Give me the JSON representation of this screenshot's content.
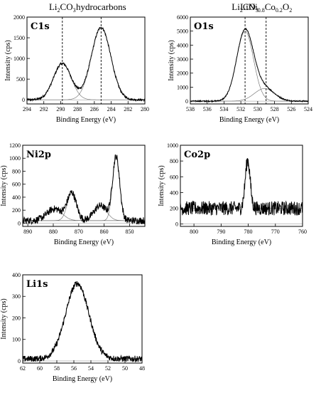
{
  "figure": {
    "panels": [
      {
        "id": "c1s",
        "label": "C1s",
        "xlabel": "Binding Energy (eV)",
        "ylabel": "Intensity (cps)",
        "xlim": [
          294,
          280
        ],
        "ylim": [
          -100,
          2000
        ],
        "xticks": [
          294,
          292,
          290,
          288,
          286,
          284,
          282,
          280
        ],
        "yticks": [
          0,
          500,
          1000,
          1500,
          2000
        ],
        "refs": [
          {
            "x": 289.8,
            "label_main": "Li",
            "sub1": "2",
            "mid": "CO",
            "sub2": "3"
          },
          {
            "x": 285.2,
            "label_main": "hydrocarbons"
          }
        ],
        "peaks": [
          {
            "center": 289.8,
            "amp": 880,
            "sigma": 1.05
          },
          {
            "center": 285.2,
            "amp": 1750,
            "sigma": 1.15
          }
        ],
        "noise": 25
      },
      {
        "id": "o1s",
        "label": "O1s",
        "xlabel": "Binding Energy (eV)",
        "ylabel": "Intensity (cps)",
        "xlim": [
          538,
          524
        ],
        "ylim": [
          -200,
          6000
        ],
        "xticks": [
          538,
          536,
          534,
          532,
          530,
          528,
          526,
          524
        ],
        "yticks": [
          0,
          1000,
          2000,
          3000,
          4000,
          5000,
          6000
        ],
        "refs": [
          {
            "x": 531.5,
            "label_main": "Li",
            "sub1": "2",
            "mid": "CO",
            "sub2": "3"
          },
          {
            "x": 529.0,
            "label_main": "LiNi",
            "sub1": "0.8",
            "mid": "Co",
            "sub2": "0.2",
            "tail": "O",
            "sub3": "2"
          }
        ],
        "peaks": [
          {
            "center": 531.5,
            "amp": 5000,
            "sigma": 1.0
          },
          {
            "center": 529.2,
            "amp": 900,
            "sigma": 1.2
          }
        ],
        "noise": 40
      },
      {
        "id": "ni2p",
        "label": "Ni2p",
        "xlabel": "Binding Energy (eV)",
        "ylabel": "Intensity (cps)",
        "xlim": [
          892,
          844
        ],
        "ylim": [
          -50,
          1200
        ],
        "xticks": [
          890,
          880,
          870,
          860,
          850
        ],
        "yticks": [
          0,
          200,
          400,
          600,
          800,
          1000,
          1200
        ],
        "refs": [],
        "peaks": [
          {
            "center": 855.3,
            "amp": 980,
            "sigma": 1.4
          },
          {
            "center": 861.5,
            "amp": 230,
            "sigma": 2.5
          },
          {
            "center": 872.7,
            "amp": 420,
            "sigma": 1.8
          },
          {
            "center": 879.5,
            "amp": 180,
            "sigma": 3.0
          }
        ],
        "baseline": 40,
        "noise": 55
      },
      {
        "id": "co2p",
        "label": "Co2p",
        "xlabel": "Binding Energy (eV)",
        "ylabel": "Intensity (cps)",
        "xlim": [
          805,
          760
        ],
        "ylim": [
          -30,
          1000
        ],
        "xticks": [
          800,
          790,
          780,
          770,
          760
        ],
        "yticks": [
          0,
          200,
          400,
          600,
          800,
          1000
        ],
        "refs": [],
        "peaks": [
          {
            "center": 780.2,
            "amp": 610,
            "sigma": 0.9
          }
        ],
        "baseline": 200,
        "noise": 90
      },
      {
        "id": "li1s",
        "label": "Li1s",
        "xlabel": "Binding Energy (eV)",
        "ylabel": "Intensity (cps)",
        "xlim": [
          62,
          48
        ],
        "ylim": [
          -10,
          400
        ],
        "xticks": [
          62,
          60,
          58,
          56,
          54,
          52,
          50,
          48
        ],
        "yticks": [
          0,
          100,
          200,
          300,
          400
        ],
        "refs": [],
        "peaks": [
          {
            "center": 55.6,
            "amp": 350,
            "sigma": 1.35
          }
        ],
        "baseline": 10,
        "noise": 14
      }
    ]
  },
  "chart_data": [
    {
      "type": "line",
      "title": "C1s",
      "xlabel": "Binding Energy (eV)",
      "ylabel": "Intensity (cps)",
      "xlim": [
        294,
        280
      ],
      "ylim": [
        -100,
        2000
      ],
      "annotations": [
        "Li2CO3",
        "hydrocarbons"
      ],
      "series": [
        {
          "name": "Li2CO3",
          "x": [
            294,
            292,
            290,
            289.8,
            288,
            286,
            285.2,
            284,
            282,
            280
          ],
          "values": [
            0,
            100,
            860,
            880,
            200,
            1150,
            1750,
            1100,
            30,
            0
          ]
        }
      ]
    },
    {
      "type": "line",
      "title": "O1s",
      "xlabel": "Binding Energy (eV)",
      "ylabel": "Intensity (cps)",
      "xlim": [
        538,
        524
      ],
      "ylim": [
        -200,
        6000
      ],
      "annotations": [
        "Li2CO3",
        "LiNi0.8Co0.2O2"
      ],
      "series": [
        {
          "name": "O1s",
          "x": [
            538,
            534,
            532,
            531.5,
            530,
            529,
            528,
            526,
            524
          ],
          "values": [
            0,
            300,
            4400,
            5000,
            2500,
            1300,
            500,
            50,
            0
          ]
        }
      ]
    },
    {
      "type": "line",
      "title": "Ni2p",
      "xlabel": "Binding Energy (eV)",
      "ylabel": "Intensity (cps)",
      "xlim": [
        892,
        844
      ],
      "ylim": [
        -50,
        1200
      ],
      "series": [
        {
          "name": "Ni2p",
          "x": [
            890,
            880,
            872.7,
            866,
            861.5,
            858,
            855.3,
            852,
            845
          ],
          "values": [
            60,
            220,
            460,
            70,
            270,
            220,
            1020,
            120,
            40
          ]
        }
      ]
    },
    {
      "type": "line",
      "title": "Co2p",
      "xlabel": "Binding Energy (eV)",
      "ylabel": "Intensity (cps)",
      "xlim": [
        805,
        760
      ],
      "ylim": [
        -30,
        1000
      ],
      "series": [
        {
          "name": "Co2p",
          "x": [
            805,
            790,
            782,
            780.2,
            778,
            770,
            760
          ],
          "values": [
            200,
            200,
            300,
            810,
            250,
            200,
            200
          ]
        }
      ]
    },
    {
      "type": "line",
      "title": "Li1s",
      "xlabel": "Binding Energy (eV)",
      "ylabel": "Intensity (cps)",
      "xlim": [
        62,
        48
      ],
      "ylim": [
        -10,
        400
      ],
      "series": [
        {
          "name": "Li1s",
          "x": [
            62,
            58,
            57,
            55.6,
            54,
            53,
            50,
            48
          ],
          "values": [
            10,
            20,
            200,
            360,
            180,
            40,
            10,
            10
          ]
        }
      ]
    }
  ]
}
